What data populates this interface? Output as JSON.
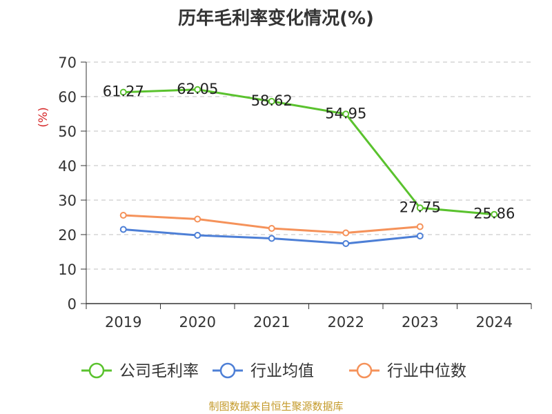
{
  "chart_data": {
    "type": "line",
    "title": "历年毛利率变化情况(%)",
    "ylabel": "(%)",
    "xlabel": "",
    "categories": [
      "2019",
      "2020",
      "2021",
      "2022",
      "2023",
      "2024"
    ],
    "ylim": [
      0,
      70
    ],
    "yticks": [
      0,
      10,
      20,
      30,
      40,
      50,
      60,
      70
    ],
    "grid": true,
    "legend": "bottom",
    "series": [
      {
        "name": "公司毛利率",
        "color": "#5ac22e",
        "values": [
          61.27,
          62.05,
          58.62,
          54.95,
          27.75,
          25.86
        ],
        "labels": [
          "61.27",
          "62.05",
          "58.62",
          "54.95",
          "27.75",
          "25.86"
        ]
      },
      {
        "name": "行业均值",
        "color": "#4d7fd6",
        "values": [
          21.5,
          19.8,
          18.9,
          17.4,
          19.6,
          null
        ]
      },
      {
        "name": "行业中位数",
        "color": "#f5925a",
        "values": [
          25.6,
          24.5,
          21.8,
          20.5,
          22.3,
          null
        ]
      }
    ]
  },
  "source": "制图数据来自恒生聚源数据库",
  "colors": {
    "axis": "#333333",
    "grid": "#cccccc",
    "ylabel": "#d62728"
  }
}
